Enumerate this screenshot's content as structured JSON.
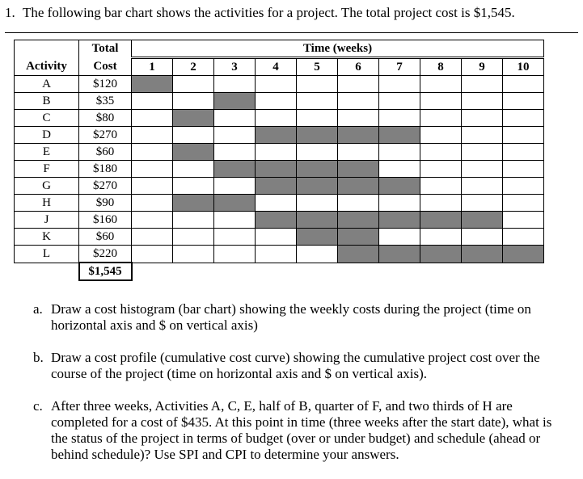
{
  "question": {
    "number": "1.",
    "text": "The following bar chart shows the activities for a project.  The total project cost is $1,545."
  },
  "table": {
    "header_activity": "Activity",
    "header_total": "Total",
    "header_cost": "Cost",
    "header_time": "Time (weeks)",
    "weeks": [
      "1",
      "2",
      "3",
      "4",
      "5",
      "6",
      "7",
      "8",
      "9",
      "10"
    ],
    "rows": [
      {
        "activity": "A",
        "cost": "$120",
        "start_week": 1,
        "end_week": 1
      },
      {
        "activity": "B",
        "cost": "$35",
        "start_week": 3,
        "end_week": 3
      },
      {
        "activity": "C",
        "cost": "$80",
        "start_week": 2,
        "end_week": 2
      },
      {
        "activity": "D",
        "cost": "$270",
        "start_week": 4,
        "end_week": 7
      },
      {
        "activity": "E",
        "cost": "$60",
        "start_week": 2,
        "end_week": 2
      },
      {
        "activity": "F",
        "cost": "$180",
        "start_week": 3,
        "end_week": 6
      },
      {
        "activity": "G",
        "cost": "$270",
        "start_week": 4,
        "end_week": 7
      },
      {
        "activity": "H",
        "cost": "$90",
        "start_week": 2,
        "end_week": 3
      },
      {
        "activity": "J",
        "cost": "$160",
        "start_week": 4,
        "end_week": 9
      },
      {
        "activity": "K",
        "cost": "$60",
        "start_week": 5,
        "end_week": 6
      },
      {
        "activity": "L",
        "cost": "$220",
        "start_week": 6,
        "end_week": 10
      }
    ],
    "total": "$1,545",
    "bar_color": "#808080"
  },
  "parts": [
    {
      "label": "a.",
      "text": "Draw a cost histogram (bar chart) showing the weekly costs during the project (time on horizontal axis and $ on vertical axis)"
    },
    {
      "label": "b.",
      "text": "Draw a cost profile (cumulative cost curve) showing the cumulative project cost over the course of the project (time on horizontal axis and $ on vertical axis)."
    },
    {
      "label": "c.",
      "text": "After three weeks, Activities A, C, E, half of B, quarter of F, and two thirds of H are completed for a cost of $435. At this point in time (three weeks after the start date), what is the status of the project in terms of budget (over or under budget) and schedule (ahead or behind schedule)? Use SPI and CPI to determine your answers."
    }
  ]
}
